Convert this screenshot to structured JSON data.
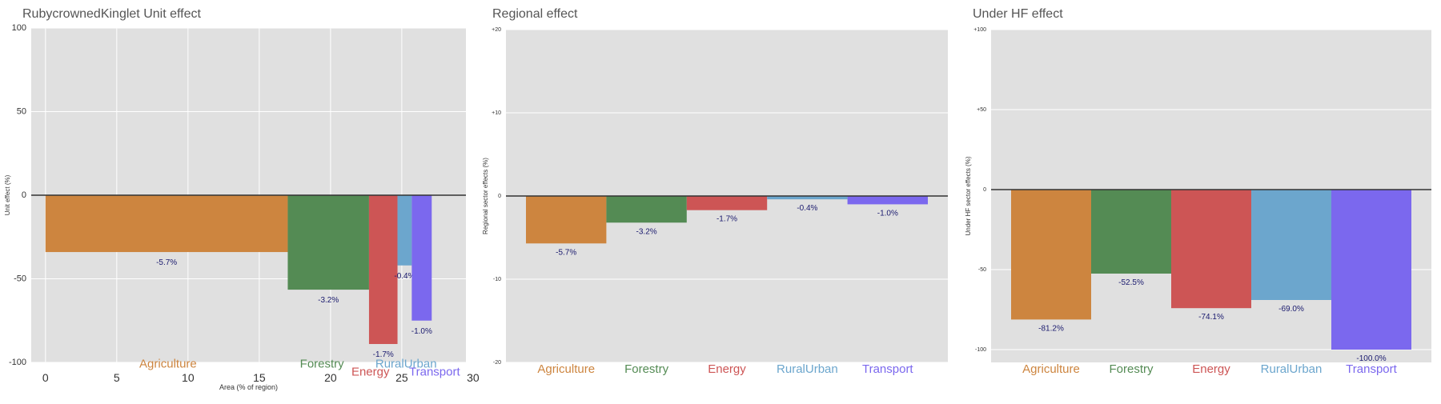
{
  "chart_data": [
    {
      "type": "bar",
      "variant": "variable-width",
      "title": "RubycrownedKinglet Unit effect",
      "xlabel": "Area (% of region)",
      "ylabel": "Unit effect (%)",
      "xlim": [
        -1,
        29.5
      ],
      "ylim": [
        -100,
        100
      ],
      "xticks": [
        0,
        5,
        10,
        15,
        20,
        25,
        30
      ],
      "xtick_labels": [
        "0",
        "5",
        "10",
        "15",
        "20",
        "25",
        "30"
      ],
      "yticks": [
        -100,
        -50,
        0,
        50,
        100
      ],
      "ytick_labels": [
        "-100",
        "-50",
        "0",
        "50",
        "100"
      ],
      "grid": true,
      "bars": [
        {
          "category": "Agriculture",
          "color": "#CD853F",
          "x_start": 0,
          "x_end": 17,
          "value": -34,
          "label": "-5.7%",
          "name_x": 8.6,
          "name_y": -103
        },
        {
          "category": "Forestry",
          "color": "#548B54",
          "x_start": 17,
          "x_end": 22.7,
          "value": -56.5,
          "label": "-3.2%",
          "name_x": 19.4,
          "name_y": -103
        },
        {
          "category": "Energy",
          "color": "#CD5555",
          "x_start": 22.7,
          "x_end": 24.7,
          "value": -89,
          "label": "-1.7%",
          "name_x": 22.8,
          "name_y": -108
        },
        {
          "category": "RuralUrban",
          "color": "#6CA6CD",
          "x_start": 24.7,
          "x_end": 25.7,
          "value": -42,
          "label": "-0.4%",
          "name_x": 25.3,
          "name_y": -103
        },
        {
          "category": "Transport",
          "color": "#7B68EE",
          "x_start": 25.7,
          "x_end": 27.1,
          "value": -75,
          "label": "-1.0%",
          "name_x": 27.3,
          "name_y": -108
        }
      ]
    },
    {
      "type": "bar",
      "title": "Regional effect",
      "xlabel": "",
      "ylabel": "Regional sector effects (%)",
      "ylim": [
        -20,
        20
      ],
      "yticks": [
        -20,
        -10,
        0,
        10,
        20
      ],
      "ytick_labels": [
        "-20",
        "-10",
        "0",
        "+10",
        "+20"
      ],
      "grid": true,
      "categories": [
        "Agriculture",
        "Forestry",
        "Energy",
        "RuralUrban",
        "Transport"
      ],
      "colors": [
        "#CD853F",
        "#548B54",
        "#CD5555",
        "#6CA6CD",
        "#7B68EE"
      ],
      "values": [
        -5.7,
        -3.2,
        -1.7,
        -0.4,
        -1.0
      ],
      "labels": [
        "-5.7%",
        "-3.2%",
        "-1.7%",
        "-0.4%",
        "-1.0%"
      ]
    },
    {
      "type": "bar",
      "title": "Under HF effect",
      "xlabel": "",
      "ylabel": "Under HF sector effects (%)",
      "ylim": [
        -108,
        100
      ],
      "yticks": [
        -100,
        -50,
        0,
        50,
        100
      ],
      "ytick_labels": [
        "-100",
        "-50",
        "0",
        "+50",
        "+100"
      ],
      "grid": true,
      "categories": [
        "Agriculture",
        "Forestry",
        "Energy",
        "RuralUrban",
        "Transport"
      ],
      "colors": [
        "#CD853F",
        "#548B54",
        "#CD5555",
        "#6CA6CD",
        "#7B68EE"
      ],
      "values": [
        -81.2,
        -52.5,
        -74.1,
        -69.0,
        -100.0
      ],
      "labels": [
        "-81.2%",
        "-52.5%",
        "-74.1%",
        "-69.0%",
        "-100.0%"
      ]
    }
  ]
}
